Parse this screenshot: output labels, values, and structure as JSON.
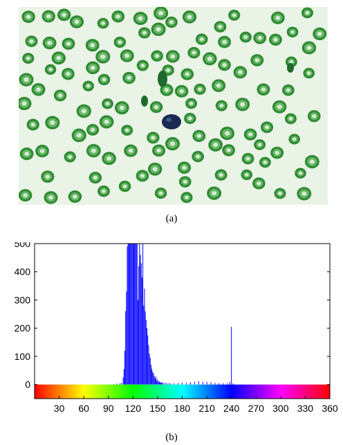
{
  "figure": {
    "caption_a": "(a)",
    "caption_b": "(b)"
  },
  "image_a": {
    "description_icon": "blood-smear-micrograph",
    "colors": {
      "background": "#e9f3e6",
      "cell": "#2f8a32",
      "cell_ring": "#66b766",
      "nucleus": "#1a2a52",
      "debris": "#1e6a2a"
    }
  },
  "chart_data": {
    "type": "bar",
    "title": "",
    "xlabel": "",
    "ylabel": "",
    "xlim": [
      0,
      360
    ],
    "ylim": [
      -50,
      500
    ],
    "y_ticks": [
      "0",
      "100",
      "200",
      "300",
      "400",
      "500"
    ],
    "x_ticks": [
      "30",
      "60",
      "90",
      "120",
      "150",
      "180",
      "210",
      "240",
      "270",
      "300",
      "330",
      "360"
    ],
    "bar_color": "#0000ff",
    "colorbar": "hue spectrum 0-360",
    "x": [
      97,
      100,
      104,
      106,
      108,
      109,
      110,
      111,
      112,
      113,
      114,
      115,
      116,
      117,
      118,
      119,
      120,
      121,
      122,
      123,
      124,
      125,
      126,
      127,
      128,
      129,
      130,
      131,
      132,
      133,
      134,
      135,
      136,
      137,
      138,
      139,
      140,
      141,
      142,
      143,
      144,
      145,
      146,
      147,
      148,
      149,
      150,
      151,
      152,
      153,
      154,
      155,
      156,
      158,
      160,
      162,
      164,
      166,
      170,
      175,
      180,
      185,
      190,
      195,
      200,
      205,
      210,
      215,
      220,
      225,
      230,
      235,
      238,
      240,
      242
    ],
    "values": [
      2,
      3,
      4,
      6,
      25,
      55,
      120,
      260,
      330,
      490,
      500,
      500,
      500,
      500,
      500,
      500,
      500,
      500,
      500,
      500,
      500,
      500,
      300,
      420,
      500,
      460,
      430,
      380,
      500,
      280,
      340,
      260,
      230,
      200,
      175,
      140,
      110,
      95,
      70,
      55,
      45,
      40,
      30,
      22,
      28,
      14,
      18,
      10,
      12,
      8,
      6,
      9,
      7,
      5,
      6,
      4,
      5,
      3,
      4,
      5,
      6,
      6,
      8,
      10,
      12,
      10,
      10,
      8,
      6,
      5,
      5,
      5,
      10,
      205,
      4
    ]
  }
}
